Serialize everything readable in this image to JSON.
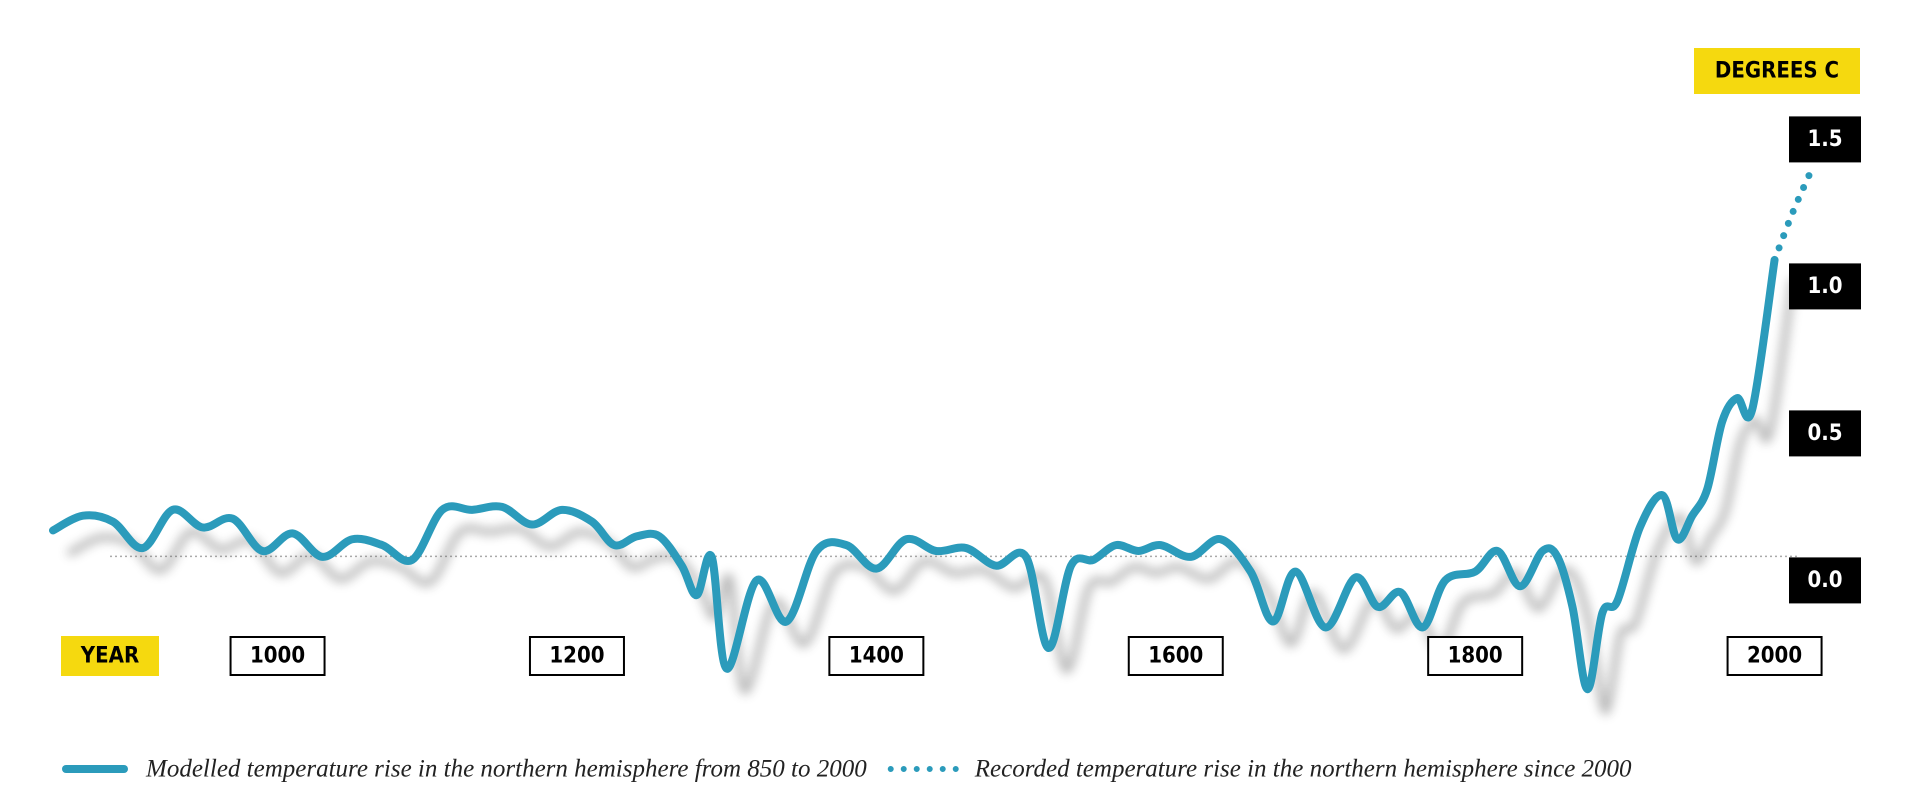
{
  "chart_data": {
    "type": "line",
    "x_label": "YEAR",
    "y_label": "DEGREES C",
    "xlim": [
      850,
      2025
    ],
    "xticks": [
      1000,
      1200,
      1400,
      1600,
      1800,
      2000
    ],
    "ylim": [
      -0.4,
      1.6
    ],
    "yticks": [
      {
        "value": 0,
        "label": "0.0"
      },
      {
        "value": 0.5,
        "label": "0.5"
      },
      {
        "value": 1,
        "label": "1.0"
      },
      {
        "value": 1.5,
        "label": "1.5"
      }
    ],
    "series": [
      {
        "name": "Modelled temperature rise in the northern hemisphere from 850 to 2000",
        "color": "#2b9bbb",
        "style": "solid",
        "x": [
          850,
          870,
          890,
          910,
          930,
          950,
          970,
          990,
          1010,
          1030,
          1050,
          1070,
          1090,
          1110,
          1130,
          1150,
          1170,
          1190,
          1210,
          1225,
          1240,
          1255,
          1270,
          1280,
          1290,
          1300,
          1320,
          1340,
          1360,
          1380,
          1400,
          1420,
          1440,
          1460,
          1480,
          1500,
          1515,
          1530,
          1545,
          1560,
          1575,
          1590,
          1610,
          1630,
          1650,
          1665,
          1680,
          1700,
          1720,
          1735,
          1750,
          1765,
          1780,
          1800,
          1815,
          1830,
          1845,
          1855,
          1865,
          1875,
          1885,
          1895,
          1910,
          1925,
          1935,
          1945,
          1955,
          1965,
          1975,
          1985,
          2000
        ],
        "values": [
          0.17,
          0.22,
          0.2,
          0.11,
          0.24,
          0.18,
          0.21,
          0.1,
          0.16,
          0.08,
          0.14,
          0.12,
          0.07,
          0.24,
          0.24,
          0.25,
          0.19,
          0.24,
          0.2,
          0.12,
          0.15,
          0.15,
          0.05,
          -0.05,
          0.08,
          -0.3,
          0,
          -0.14,
          0.1,
          0.12,
          0.04,
          0.14,
          0.1,
          0.11,
          0.05,
          0.08,
          -0.23,
          0.05,
          0.07,
          0.12,
          0.1,
          0.12,
          0.08,
          0.14,
          0.03,
          -0.14,
          0.03,
          -0.16,
          0.01,
          -0.09,
          -0.04,
          -0.16,
          0,
          0.03,
          0.1,
          -0.02,
          0.1,
          0.08,
          -0.09,
          -0.37,
          -0.11,
          -0.07,
          0.18,
          0.29,
          0.14,
          0.22,
          0.31,
          0.54,
          0.62,
          0.58,
          1.09
        ]
      },
      {
        "name": "Recorded temperature rise in the northern hemisphere since 2000",
        "color": "#2b9bbb",
        "style": "dotted",
        "x": [
          2000,
          2012,
          2025
        ],
        "values": [
          1.09,
          1.25,
          1.4
        ]
      }
    ]
  }
}
